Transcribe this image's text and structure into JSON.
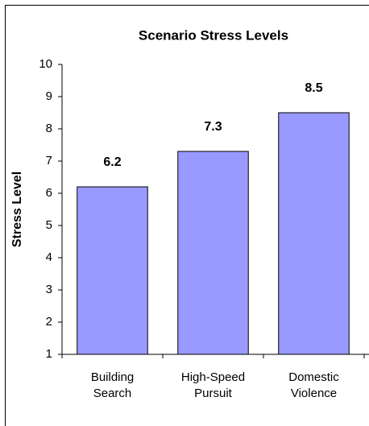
{
  "chart_data": {
    "type": "bar",
    "title": "Scenario Stress Levels",
    "y_label": "Stress Level",
    "categories": [
      "Building Search",
      "High-Speed Pursuit",
      "Domestic Violence"
    ],
    "values": [
      6.2,
      7.3,
      8.5
    ],
    "color": "#9999ff",
    "ylim": [
      1,
      10
    ],
    "yticks": [
      1,
      2,
      3,
      4,
      5,
      6,
      7,
      8,
      9,
      10
    ],
    "grid": false
  }
}
